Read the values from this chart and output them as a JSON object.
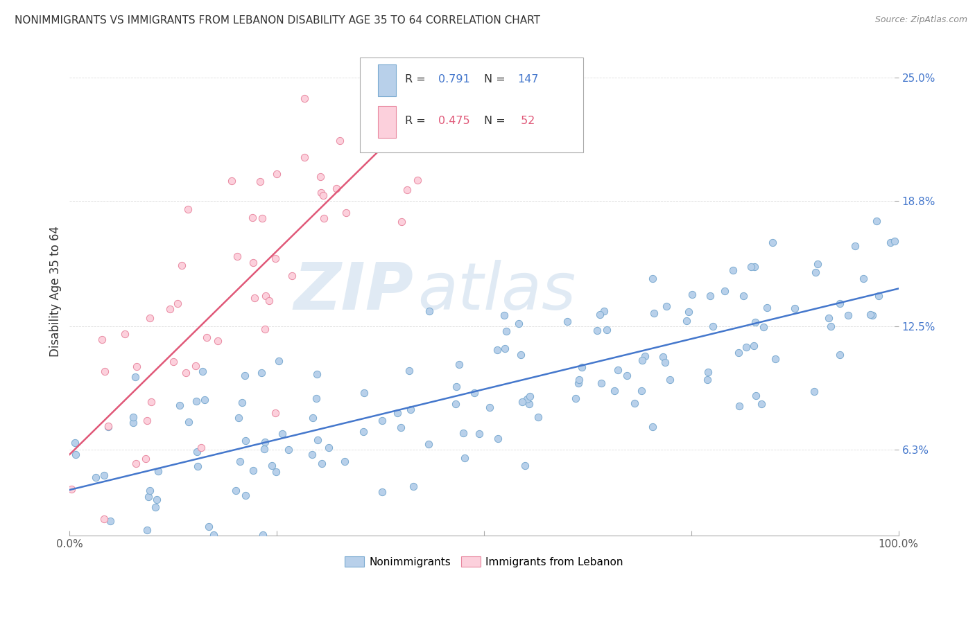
{
  "title": "NONIMMIGRANTS VS IMMIGRANTS FROM LEBANON DISABILITY AGE 35 TO 64 CORRELATION CHART",
  "source": "Source: ZipAtlas.com",
  "ylabel": "Disability Age 35 to 64",
  "watermark_zip": "ZIP",
  "watermark_atlas": "atlas",
  "legend_blue_r": "0.791",
  "legend_blue_n": "147",
  "legend_pink_r": "0.475",
  "legend_pink_n": "52",
  "blue_color": "#b8d0ea",
  "blue_edge": "#7aaad0",
  "blue_line": "#4477cc",
  "pink_color": "#fcd0dc",
  "pink_edge": "#e888a0",
  "pink_line": "#e05878",
  "ytick_values": [
    6.3,
    12.5,
    18.8,
    25.0
  ],
  "ytick_labels": [
    "6.3%",
    "12.5%",
    "18.8%",
    "25.0%"
  ],
  "xlim": [
    0.0,
    100.0
  ],
  "ylim": [
    2.0,
    26.5
  ],
  "blue_intercept": 3.8,
  "blue_slope": 0.105,
  "blue_noise_std": 2.2,
  "blue_n": 147,
  "pink_intercept": 5.0,
  "pink_slope": 0.45,
  "pink_noise_std": 3.5,
  "pink_n": 52,
  "pink_x_max": 42.0,
  "grid_color": "#dddddd",
  "grid_style": "--",
  "title_fontsize": 11,
  "source_fontsize": 9,
  "tick_fontsize": 11,
  "legend_fontsize": 11
}
